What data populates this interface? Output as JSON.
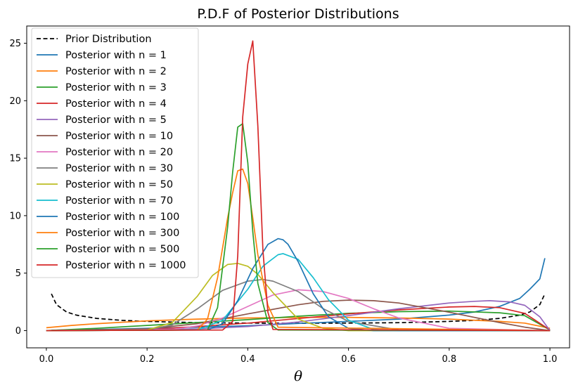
{
  "chart_data": {
    "type": "line",
    "title": "P.D.F of Posterior Distributions",
    "xlabel": "θ",
    "ylabel": "",
    "xlim": [
      -0.039,
      1.039
    ],
    "ylim": [
      -1.5,
      26.5
    ],
    "xticks": [
      "0.0",
      "0.2",
      "0.4",
      "0.6",
      "0.8",
      "1.0"
    ],
    "yticks": [
      "0",
      "5",
      "10",
      "15",
      "20",
      "25"
    ],
    "legend_position": "top-left",
    "prior": {
      "name": "Prior Distribution",
      "style": "dashed",
      "color": "#000000",
      "x": [
        0.01,
        0.02,
        0.04,
        0.06,
        0.1,
        0.15,
        0.2,
        0.3,
        0.4,
        0.5,
        0.6,
        0.7,
        0.8,
        0.85,
        0.9,
        0.94,
        0.96,
        0.98,
        0.99
      ],
      "y": [
        3.2,
        2.26,
        1.62,
        1.34,
        1.06,
        0.89,
        0.8,
        0.69,
        0.65,
        0.64,
        0.65,
        0.69,
        0.8,
        0.89,
        1.06,
        1.34,
        1.62,
        2.26,
        3.2
      ]
    },
    "series": [
      {
        "name": "Posterior with n = 1",
        "color": "#1f77b4",
        "x": [
          0.01,
          0.1,
          0.2,
          0.3,
          0.4,
          0.5,
          0.6,
          0.7,
          0.8,
          0.85,
          0.9,
          0.94,
          0.96,
          0.98,
          0.99
        ],
        "y": [
          0.03,
          0.1,
          0.2,
          0.3,
          0.42,
          0.62,
          0.8,
          1.0,
          1.35,
          1.62,
          2.1,
          2.8,
          3.6,
          4.5,
          6.3
        ]
      },
      {
        "name": "Posterior with n = 2",
        "color": "#ff7f0e",
        "x": [
          0.0,
          0.05,
          0.1,
          0.2,
          0.3,
          0.4,
          0.5,
          0.6,
          0.7,
          0.8,
          0.9,
          0.95,
          1.0
        ],
        "y": [
          0.25,
          0.45,
          0.6,
          0.85,
          1.0,
          1.1,
          1.15,
          1.15,
          1.1,
          1.0,
          0.8,
          0.65,
          0.2
        ]
      },
      {
        "name": "Posterior with n = 3",
        "color": "#2ca02c",
        "x": [
          0.0,
          0.1,
          0.2,
          0.3,
          0.4,
          0.5,
          0.6,
          0.7,
          0.8,
          0.9,
          0.95,
          1.0
        ],
        "y": [
          0.0,
          0.2,
          0.45,
          0.7,
          0.95,
          1.25,
          1.5,
          1.65,
          1.7,
          1.55,
          1.3,
          0.05
        ]
      },
      {
        "name": "Posterior with n = 4",
        "color": "#d62728",
        "x": [
          0.0,
          0.2,
          0.3,
          0.4,
          0.5,
          0.6,
          0.7,
          0.8,
          0.85,
          0.9,
          0.95,
          1.0
        ],
        "y": [
          0.0,
          0.1,
          0.35,
          0.65,
          1.05,
          1.45,
          1.8,
          2.05,
          2.1,
          2.0,
          1.5,
          0.05
        ]
      },
      {
        "name": "Posterior with n = 5",
        "color": "#9467bd",
        "x": [
          0.0,
          0.3,
          0.4,
          0.5,
          0.6,
          0.7,
          0.8,
          0.85,
          0.88,
          0.92,
          0.95,
          0.98,
          1.0
        ],
        "y": [
          0.0,
          0.15,
          0.35,
          0.75,
          1.3,
          1.9,
          2.4,
          2.55,
          2.6,
          2.5,
          2.2,
          1.2,
          0.0
        ]
      },
      {
        "name": "Posterior with n = 10",
        "color": "#8c564b",
        "x": [
          0.0,
          0.2,
          0.3,
          0.4,
          0.5,
          0.55,
          0.6,
          0.65,
          0.7,
          0.8,
          0.9,
          0.95,
          1.0
        ],
        "y": [
          0.0,
          0.15,
          0.6,
          1.45,
          2.25,
          2.55,
          2.65,
          2.6,
          2.4,
          1.6,
          0.7,
          0.3,
          0.0
        ]
      },
      {
        "name": "Posterior with n = 20",
        "color": "#e377c2",
        "x": [
          0.0,
          0.25,
          0.3,
          0.35,
          0.4,
          0.45,
          0.5,
          0.55,
          0.6,
          0.65,
          0.7,
          0.8,
          1.0
        ],
        "y": [
          0.0,
          0.1,
          0.4,
          1.1,
          2.1,
          3.1,
          3.55,
          3.4,
          2.8,
          1.9,
          1.1,
          0.2,
          0.0
        ]
      },
      {
        "name": "Posterior with n = 30",
        "color": "#7f7f7f",
        "x": [
          0.0,
          0.2,
          0.25,
          0.3,
          0.35,
          0.4,
          0.43,
          0.45,
          0.5,
          0.55,
          0.6,
          0.7,
          1.0
        ],
        "y": [
          0.0,
          0.05,
          0.5,
          1.9,
          3.5,
          4.3,
          4.45,
          4.3,
          3.4,
          1.9,
          0.8,
          0.05,
          0.0
        ]
      },
      {
        "name": "Posterior with n = 50",
        "color": "#bcbd22",
        "x": [
          0.0,
          0.2,
          0.25,
          0.3,
          0.33,
          0.36,
          0.38,
          0.4,
          0.42,
          0.45,
          0.5,
          0.55,
          0.6,
          1.0
        ],
        "y": [
          0.0,
          0.05,
          0.7,
          3.0,
          4.8,
          5.75,
          5.85,
          5.6,
          4.9,
          3.3,
          1.0,
          0.2,
          0.0,
          0.0
        ]
      },
      {
        "name": "Posterior with n = 70",
        "color": "#17becf",
        "x": [
          0.0,
          0.3,
          0.35,
          0.4,
          0.43,
          0.46,
          0.47,
          0.5,
          0.53,
          0.56,
          0.6,
          0.65,
          0.7,
          1.0
        ],
        "y": [
          0.0,
          0.05,
          0.9,
          3.6,
          5.6,
          6.6,
          6.7,
          6.2,
          4.6,
          2.7,
          0.9,
          0.1,
          0.0,
          0.0
        ]
      },
      {
        "name": "Posterior with n = 100",
        "color": "#1f77b4",
        "x": [
          0.0,
          0.32,
          0.35,
          0.38,
          0.41,
          0.44,
          0.46,
          0.47,
          0.48,
          0.5,
          0.53,
          0.56,
          0.6,
          0.65,
          1.0
        ],
        "y": [
          0.0,
          0.05,
          0.6,
          2.6,
          5.4,
          7.5,
          8.0,
          7.9,
          7.5,
          6.0,
          3.2,
          1.2,
          0.2,
          0.0,
          0.0
        ]
      },
      {
        "name": "Posterior with n = 300",
        "color": "#ff7f0e",
        "x": [
          0.0,
          0.3,
          0.32,
          0.34,
          0.36,
          0.37,
          0.38,
          0.39,
          0.4,
          0.41,
          0.42,
          0.44,
          0.46,
          1.0
        ],
        "y": [
          0.0,
          0.05,
          1.0,
          4.6,
          9.8,
          12.0,
          13.9,
          14.05,
          12.8,
          9.8,
          6.6,
          2.2,
          0.3,
          0.0
        ]
      },
      {
        "name": "Posterior with n = 500",
        "color": "#2ca02c",
        "x": [
          0.0,
          0.32,
          0.34,
          0.36,
          0.37,
          0.38,
          0.39,
          0.4,
          0.41,
          0.42,
          0.44,
          0.46,
          1.0
        ],
        "y": [
          0.0,
          0.05,
          2.0,
          9.0,
          13.8,
          17.7,
          18.0,
          14.6,
          8.6,
          4.1,
          0.7,
          0.05,
          0.0
        ]
      },
      {
        "name": "Posterior with n = 1000",
        "color": "#d62728",
        "x": [
          0.0,
          0.35,
          0.37,
          0.38,
          0.39,
          0.4,
          0.41,
          0.42,
          0.43,
          0.44,
          0.45,
          1.0
        ],
        "y": [
          0.0,
          0.05,
          0.8,
          6.5,
          18.6,
          23.2,
          25.2,
          17.8,
          7.0,
          1.6,
          0.1,
          0.0
        ]
      }
    ]
  }
}
